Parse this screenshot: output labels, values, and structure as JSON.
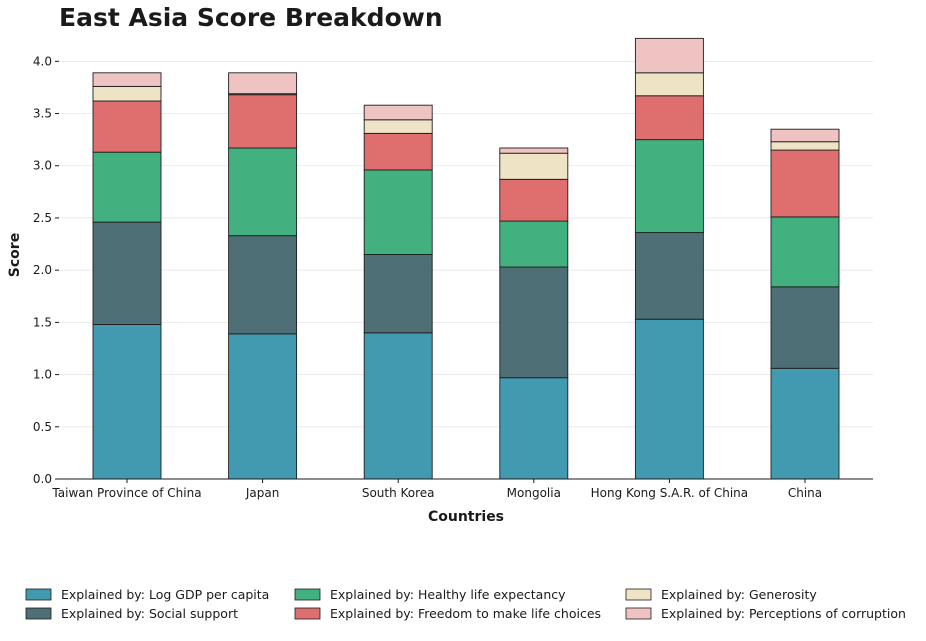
{
  "chart_data": {
    "type": "bar",
    "stacked": true,
    "title": "East Asia Score Breakdown",
    "xlabel": "Countries",
    "ylabel": "Score",
    "ylim": [
      0,
      4.3
    ],
    "yticks": [
      0.0,
      0.5,
      1.0,
      1.5,
      2.0,
      2.5,
      3.0,
      3.5,
      4.0
    ],
    "ytick_labels": [
      "0.0",
      "0.5",
      "1.0",
      "1.5",
      "2.0",
      "2.5",
      "3.0",
      "3.5",
      "4.0"
    ],
    "grid": "horizontal",
    "legend_position": "bottom",
    "categories": [
      "Taiwan Province of China",
      "Japan",
      "South Korea",
      "Mongolia",
      "Hong Kong S.A.R. of China",
      "China"
    ],
    "series": [
      {
        "name": "Explained by: Log GDP per capita",
        "color": "#2e8fa8",
        "values": [
          1.48,
          1.39,
          1.4,
          0.97,
          1.53,
          1.06
        ]
      },
      {
        "name": "Explained by: Social support",
        "color": "#3a5f66",
        "values": [
          0.98,
          0.94,
          0.75,
          1.06,
          0.83,
          0.78
        ]
      },
      {
        "name": "Explained by: Healthy life expectancy",
        "color": "#2ea771",
        "values": [
          0.67,
          0.84,
          0.81,
          0.44,
          0.89,
          0.67
        ]
      },
      {
        "name": "Explained by: Freedom to make life choices",
        "color": "#db5f5f",
        "values": [
          0.49,
          0.51,
          0.35,
          0.4,
          0.42,
          0.64
        ]
      },
      {
        "name": "Explained by: Generosity",
        "color": "#ede0c0",
        "values": [
          0.14,
          0.01,
          0.13,
          0.25,
          0.22,
          0.08
        ]
      },
      {
        "name": "Explained by: Perceptions of corruption",
        "color": "#eebcbc",
        "values": [
          0.13,
          0.2,
          0.14,
          0.05,
          0.33,
          0.12
        ]
      }
    ]
  }
}
